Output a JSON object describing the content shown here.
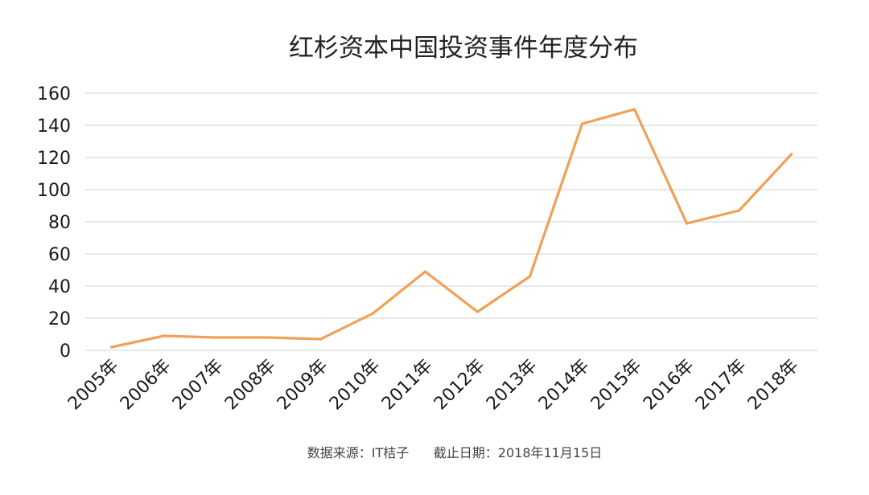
{
  "chart_data": {
    "type": "line",
    "title": "红杉资本中国投资事件年度分布",
    "categories": [
      "2005年",
      "2006年",
      "2007年",
      "2008年",
      "2009年",
      "2010年",
      "2011年",
      "2012年",
      "2013年",
      "2014年",
      "2015年",
      "2016年",
      "2017年",
      "2018年"
    ],
    "series": [
      {
        "values": [
          2,
          9,
          8,
          8,
          7,
          23,
          49,
          24,
          46,
          141,
          150,
          79,
          87,
          122
        ]
      }
    ],
    "y_ticks": [
      0,
      20,
      40,
      60,
      80,
      100,
      120,
      140,
      160
    ],
    "ylim": [
      0,
      160
    ],
    "grid": true,
    "line_color": "#f0a057",
    "grid_color": "#d9d9d9",
    "footnote": "数据来源：IT桔子      截止日期：2018年11月15日"
  }
}
